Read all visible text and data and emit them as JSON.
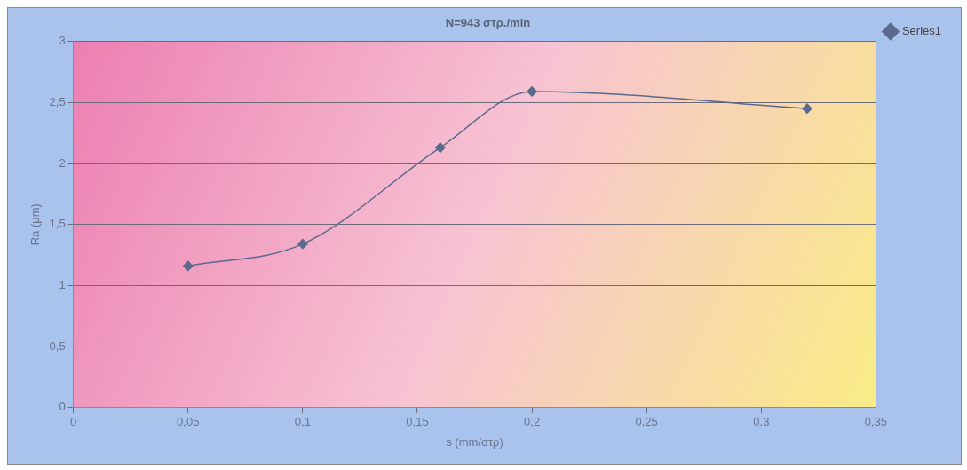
{
  "chart_data": {
    "type": "line",
    "title": "N=943 στρ./min",
    "xlabel": "s (mm/στρ)",
    "ylabel": "Ra (μm)",
    "x": [
      0.05,
      0.1,
      0.16,
      0.2,
      0.32
    ],
    "series": [
      {
        "name": "Series1",
        "color": "#5b6a8c",
        "values": [
          1.16,
          1.34,
          2.13,
          2.59,
          2.45
        ]
      }
    ],
    "xlim": [
      0,
      0.35
    ],
    "xticks": [
      0,
      {
        "value": 0.05,
        "label": "0,05"
      },
      {
        "value": 0.1,
        "label": "0,1"
      },
      {
        "value": 0.15,
        "label": "0,15"
      },
      {
        "value": 0.2,
        "label": "0,2"
      },
      {
        "value": 0.25,
        "label": "0,25"
      },
      {
        "value": 0.3,
        "label": "0,3"
      },
      {
        "value": 0.35,
        "label": "0,35"
      }
    ],
    "ylim": [
      0,
      3
    ],
    "yticks": [
      0,
      {
        "value": 0.5,
        "label": "0,5"
      },
      1,
      {
        "value": 1.5,
        "label": "1,5"
      },
      2,
      {
        "value": 2.5,
        "label": "2,5"
      },
      3
    ],
    "grid": "y",
    "legend": "top right",
    "marker": "diamond",
    "line_style": "solid"
  }
}
